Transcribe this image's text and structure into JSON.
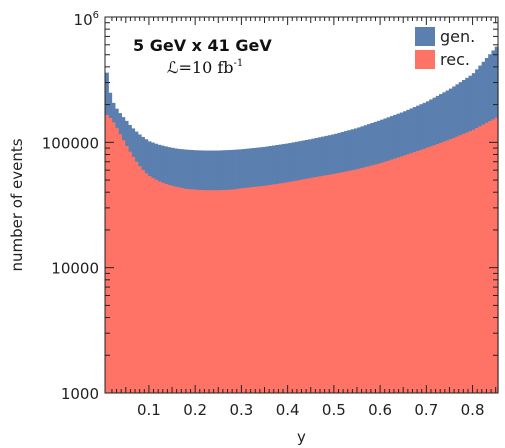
{
  "chart_data": {
    "type": "bar",
    "title": "5 GeV x 41 GeV",
    "luminosity": "ℒ=10 fb",
    "luminosity_exp": "-1",
    "xlabel": "y",
    "ylabel": "number of events",
    "xlim": [
      0.005,
      0.855
    ],
    "ylim": [
      1000,
      1000000
    ],
    "yscale": "log",
    "grid": false,
    "legend_position": "top-right",
    "x_ticks": [
      "0.1",
      "0.2",
      "0.3",
      "0.4",
      "0.5",
      "0.6",
      "0.7",
      "0.8"
    ],
    "x_tick_values": [
      0.1,
      0.2,
      0.3,
      0.4,
      0.5,
      0.6,
      0.7,
      0.8
    ],
    "y_tick_labels": [
      "1000",
      "10000",
      "100000"
    ],
    "y_tick_values": [
      1000,
      10000,
      100000
    ],
    "y_top_label_base": "10",
    "y_top_label_exp": "6",
    "series": [
      {
        "name": "gen.",
        "color": "#5b7fae",
        "points": [
          [
            0.005,
            560000
          ],
          [
            0.01,
            300000
          ],
          [
            0.02,
            215000
          ],
          [
            0.03,
            185000
          ],
          [
            0.04,
            165000
          ],
          [
            0.05,
            150000
          ],
          [
            0.06,
            135000
          ],
          [
            0.07,
            124000
          ],
          [
            0.08,
            115000
          ],
          [
            0.09,
            108000
          ],
          [
            0.1,
            102000
          ],
          [
            0.12,
            96000
          ],
          [
            0.14,
            92000
          ],
          [
            0.16,
            89000
          ],
          [
            0.18,
            87500
          ],
          [
            0.2,
            86500
          ],
          [
            0.22,
            86000
          ],
          [
            0.25,
            86000
          ],
          [
            0.28,
            87000
          ],
          [
            0.3,
            88000
          ],
          [
            0.35,
            92000
          ],
          [
            0.4,
            98000
          ],
          [
            0.45,
            106000
          ],
          [
            0.5,
            116000
          ],
          [
            0.55,
            130000
          ],
          [
            0.6,
            150000
          ],
          [
            0.65,
            175000
          ],
          [
            0.7,
            210000
          ],
          [
            0.75,
            265000
          ],
          [
            0.8,
            350000
          ],
          [
            0.855,
            600000
          ]
        ]
      },
      {
        "name": "rec.",
        "color": "#ff7366",
        "points": [
          [
            0.005,
            165000
          ],
          [
            0.01,
            165000
          ],
          [
            0.02,
            150000
          ],
          [
            0.03,
            130000
          ],
          [
            0.04,
            110000
          ],
          [
            0.05,
            95000
          ],
          [
            0.06,
            82000
          ],
          [
            0.07,
            72000
          ],
          [
            0.08,
            64000
          ],
          [
            0.09,
            58000
          ],
          [
            0.1,
            54000
          ],
          [
            0.12,
            49000
          ],
          [
            0.14,
            46000
          ],
          [
            0.16,
            44000
          ],
          [
            0.18,
            42500
          ],
          [
            0.2,
            42000
          ],
          [
            0.22,
            41500
          ],
          [
            0.25,
            41500
          ],
          [
            0.28,
            42000
          ],
          [
            0.3,
            43000
          ],
          [
            0.35,
            45000
          ],
          [
            0.4,
            48000
          ],
          [
            0.45,
            52000
          ],
          [
            0.5,
            56000
          ],
          [
            0.55,
            61000
          ],
          [
            0.6,
            68000
          ],
          [
            0.65,
            78000
          ],
          [
            0.7,
            90000
          ],
          [
            0.75,
            105000
          ],
          [
            0.8,
            125000
          ],
          [
            0.855,
            160000
          ]
        ]
      }
    ]
  }
}
